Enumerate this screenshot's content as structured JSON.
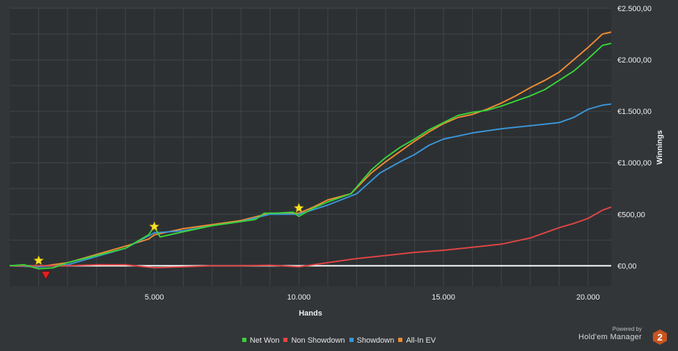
{
  "chart_data": {
    "type": "line",
    "xlabel": "Hands",
    "ylabel": "Winnings",
    "xlim": [
      0,
      20800
    ],
    "ylim": [
      -200,
      2500
    ],
    "x_ticks": [
      5000,
      10000,
      15000,
      20000
    ],
    "x_tick_labels": [
      "5.000",
      "10.000",
      "15.000",
      "20.000"
    ],
    "y_ticks": [
      0,
      500,
      1000,
      1500,
      2000,
      2500
    ],
    "y_tick_labels": [
      "€0,00",
      "€500,00",
      "€1.000,00",
      "€1.500,00",
      "€2.000,00",
      "€2.500,00"
    ],
    "grid": true,
    "legend_position": "bottom",
    "series": [
      {
        "name": "Net Won",
        "color": "#39d33a",
        "points": [
          [
            0,
            0
          ],
          [
            500,
            10
          ],
          [
            1000,
            -30
          ],
          [
            1500,
            -20
          ],
          [
            2000,
            30
          ],
          [
            3000,
            100
          ],
          [
            4000,
            170
          ],
          [
            4800,
            300
          ],
          [
            5000,
            380
          ],
          [
            5200,
            280
          ],
          [
            6000,
            330
          ],
          [
            7000,
            390
          ],
          [
            8000,
            430
          ],
          [
            8500,
            450
          ],
          [
            8800,
            510
          ],
          [
            9200,
            510
          ],
          [
            9800,
            520
          ],
          [
            10000,
            480
          ],
          [
            10500,
            560
          ],
          [
            11000,
            620
          ],
          [
            11800,
            700
          ],
          [
            12500,
            930
          ],
          [
            13000,
            1050
          ],
          [
            13500,
            1150
          ],
          [
            14000,
            1230
          ],
          [
            14500,
            1320
          ],
          [
            15000,
            1390
          ],
          [
            15500,
            1460
          ],
          [
            16000,
            1490
          ],
          [
            16500,
            1510
          ],
          [
            17000,
            1550
          ],
          [
            17500,
            1600
          ],
          [
            18000,
            1650
          ],
          [
            18500,
            1710
          ],
          [
            19000,
            1800
          ],
          [
            19500,
            1890
          ],
          [
            20000,
            2010
          ],
          [
            20500,
            2140
          ],
          [
            20800,
            2160
          ]
        ]
      },
      {
        "name": "Non Showdown",
        "color": "#e04545",
        "points": [
          [
            0,
            0
          ],
          [
            2000,
            0
          ],
          [
            3000,
            10
          ],
          [
            4000,
            10
          ],
          [
            5000,
            -20
          ],
          [
            6000,
            -10
          ],
          [
            7000,
            0
          ],
          [
            8000,
            0
          ],
          [
            9000,
            5
          ],
          [
            10000,
            -10
          ],
          [
            11000,
            30
          ],
          [
            12000,
            70
          ],
          [
            13000,
            100
          ],
          [
            14000,
            130
          ],
          [
            15000,
            150
          ],
          [
            16000,
            180
          ],
          [
            17000,
            210
          ],
          [
            18000,
            270
          ],
          [
            19000,
            370
          ],
          [
            19500,
            410
          ],
          [
            20000,
            460
          ],
          [
            20500,
            540
          ],
          [
            20800,
            570
          ]
        ]
      },
      {
        "name": "Showdown",
        "color": "#3a96d8",
        "points": [
          [
            0,
            0
          ],
          [
            1000,
            -10
          ],
          [
            2000,
            10
          ],
          [
            3000,
            90
          ],
          [
            4000,
            170
          ],
          [
            5000,
            320
          ],
          [
            6000,
            340
          ],
          [
            7000,
            390
          ],
          [
            8000,
            430
          ],
          [
            9000,
            500
          ],
          [
            10000,
            500
          ],
          [
            11000,
            590
          ],
          [
            12000,
            700
          ],
          [
            12800,
            900
          ],
          [
            13500,
            1010
          ],
          [
            14000,
            1080
          ],
          [
            14500,
            1170
          ],
          [
            15000,
            1230
          ],
          [
            15500,
            1260
          ],
          [
            16000,
            1290
          ],
          [
            16500,
            1310
          ],
          [
            17000,
            1330
          ],
          [
            18000,
            1360
          ],
          [
            19000,
            1390
          ],
          [
            19500,
            1440
          ],
          [
            20000,
            1520
          ],
          [
            20500,
            1560
          ],
          [
            20800,
            1570
          ]
        ]
      },
      {
        "name": "All-In EV",
        "color": "#f08c32",
        "points": [
          [
            0,
            0
          ],
          [
            1000,
            -10
          ],
          [
            2000,
            30
          ],
          [
            3000,
            110
          ],
          [
            4000,
            190
          ],
          [
            4800,
            260
          ],
          [
            5000,
            300
          ],
          [
            6000,
            360
          ],
          [
            7000,
            400
          ],
          [
            8000,
            440
          ],
          [
            9000,
            510
          ],
          [
            10000,
            510
          ],
          [
            10500,
            570
          ],
          [
            11000,
            640
          ],
          [
            11800,
            700
          ],
          [
            12500,
            900
          ],
          [
            13000,
            1010
          ],
          [
            13500,
            1110
          ],
          [
            14000,
            1210
          ],
          [
            14500,
            1300
          ],
          [
            15000,
            1380
          ],
          [
            15500,
            1440
          ],
          [
            16000,
            1470
          ],
          [
            16500,
            1520
          ],
          [
            17000,
            1580
          ],
          [
            17500,
            1650
          ],
          [
            18000,
            1730
          ],
          [
            18500,
            1800
          ],
          [
            19000,
            1880
          ],
          [
            19500,
            2000
          ],
          [
            20000,
            2120
          ],
          [
            20500,
            2250
          ],
          [
            20800,
            2270
          ]
        ]
      }
    ],
    "markers": [
      {
        "shape": "star",
        "color": "#f5e02a",
        "x": 1000,
        "y": 50
      },
      {
        "shape": "triangle-down",
        "color": "#e02020",
        "x": 1250,
        "y": -90
      },
      {
        "shape": "star",
        "color": "#f5e02a",
        "x": 5000,
        "y": 380
      },
      {
        "shape": "star",
        "color": "#f5e02a",
        "x": 10000,
        "y": 560
      }
    ]
  },
  "branding": {
    "powered_by": "Powered by",
    "product": "Hold'em Manager",
    "logo_text": "2",
    "logo_color": "#c9541e"
  }
}
